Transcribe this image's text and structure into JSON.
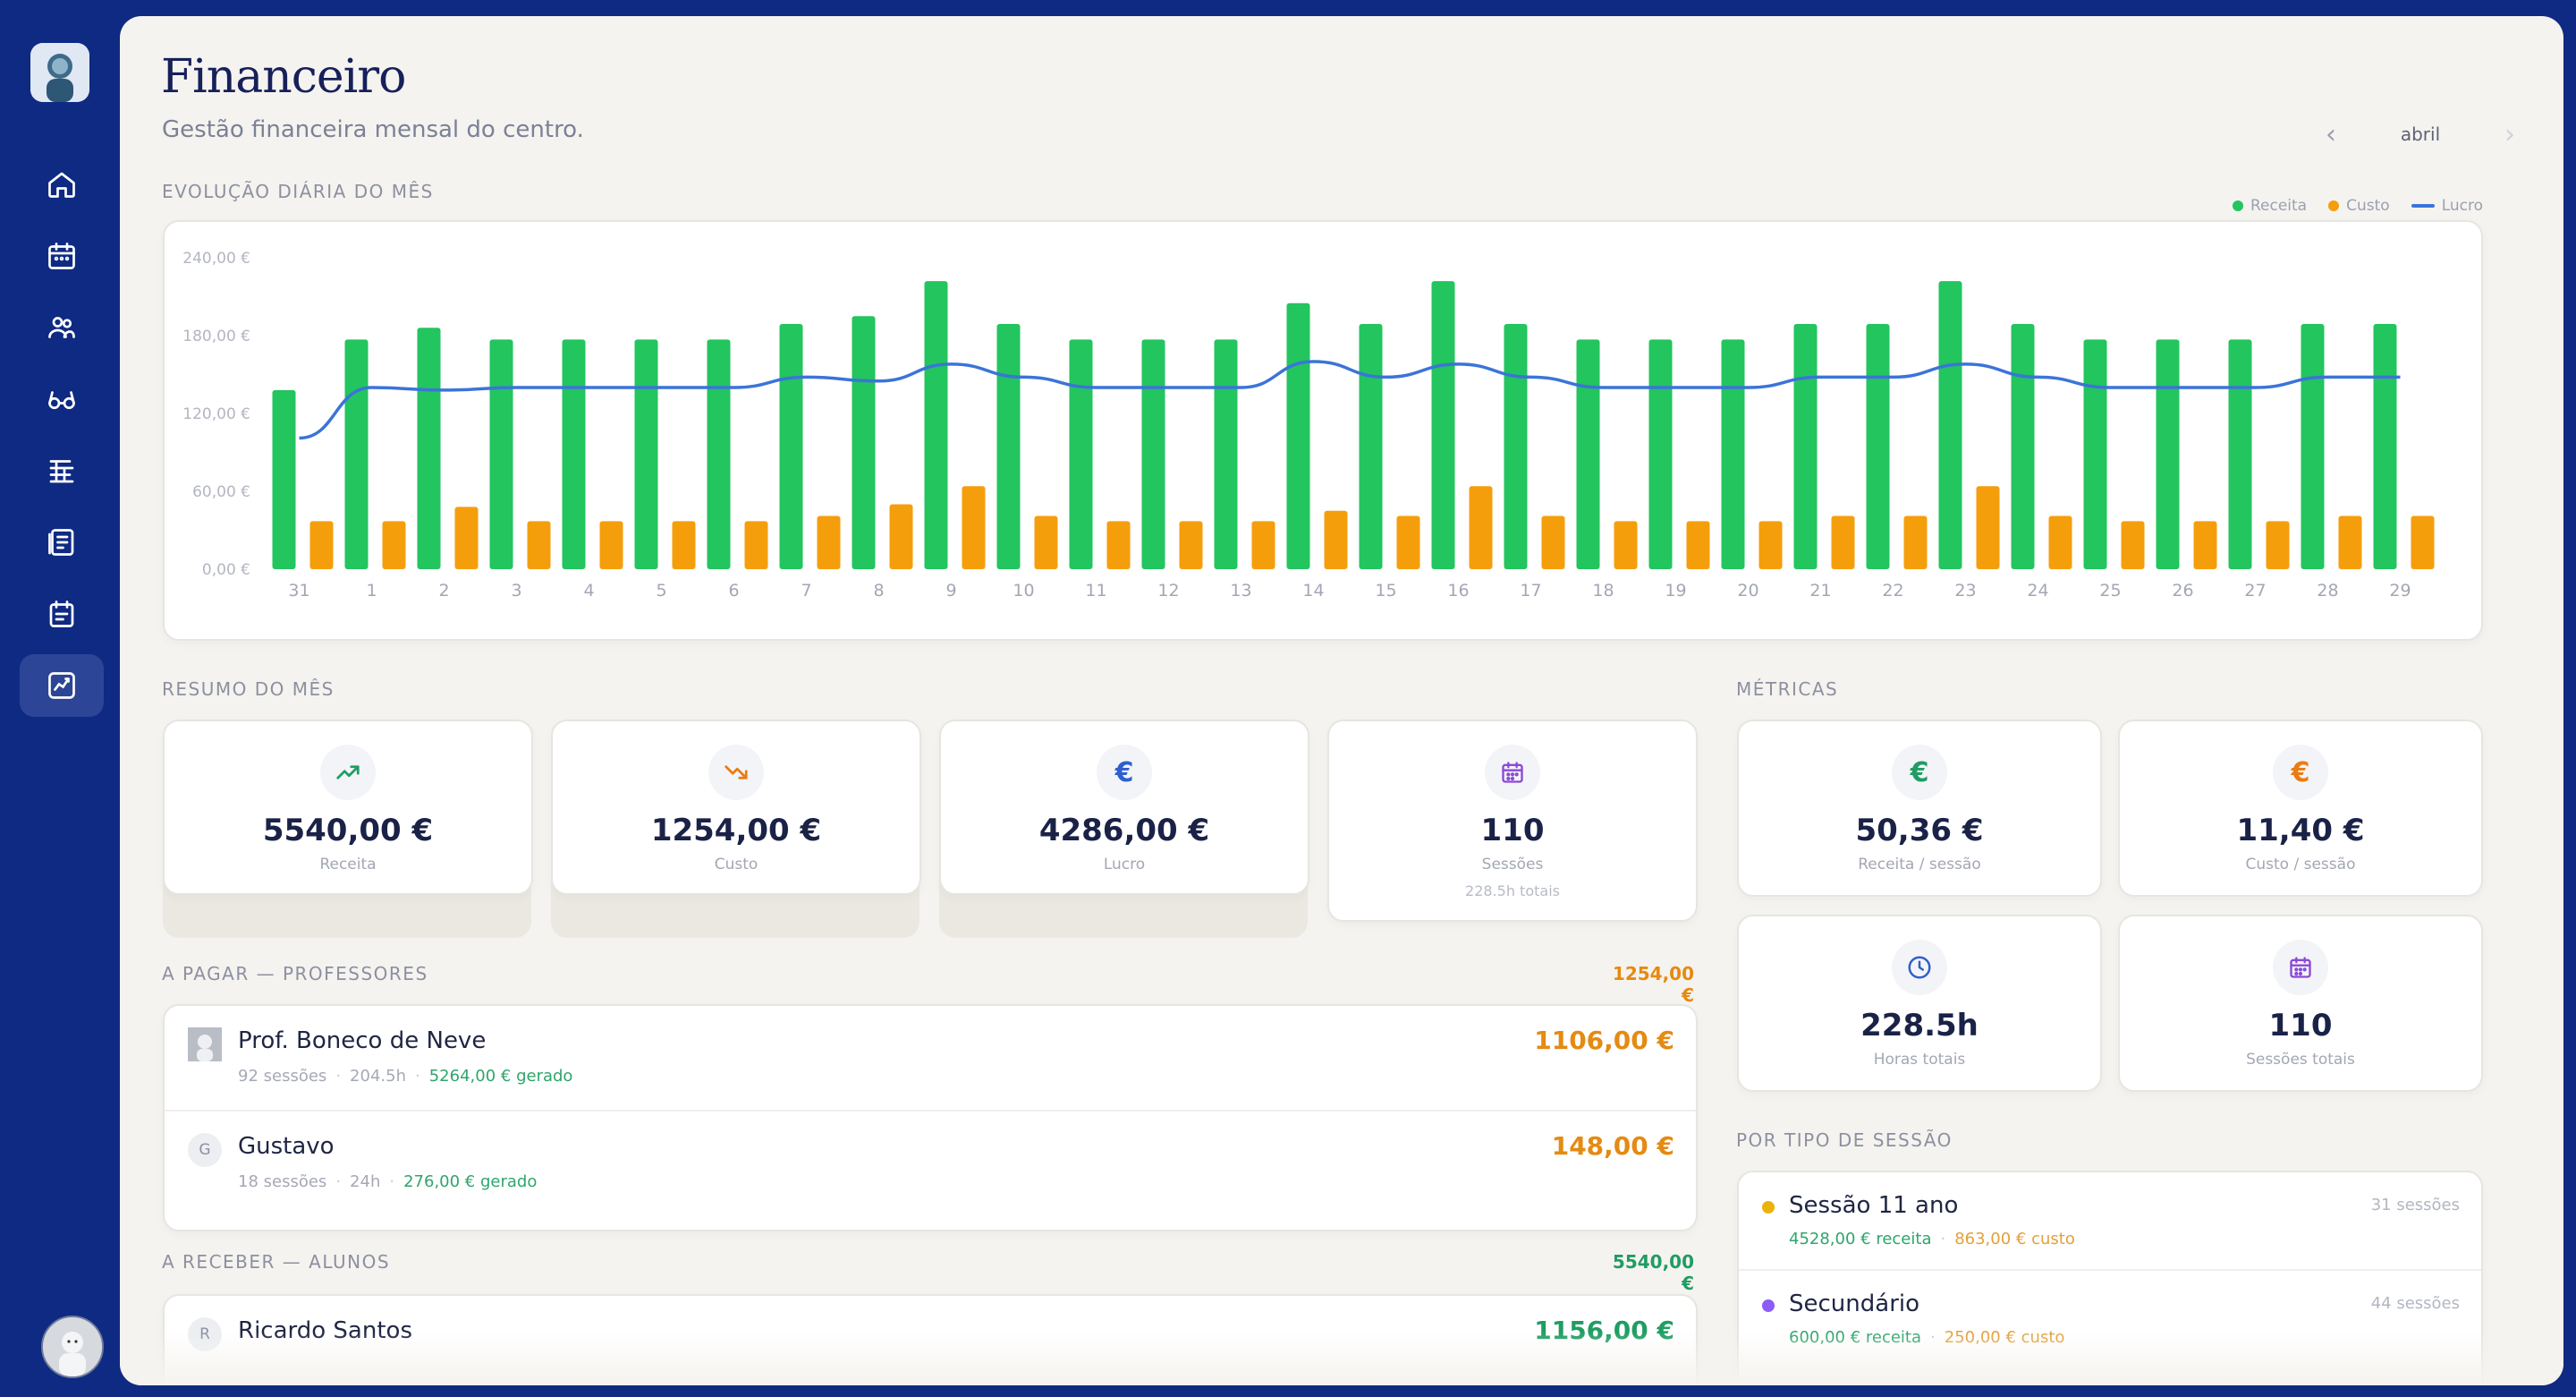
{
  "header": {
    "title": "Financeiro",
    "subtitle": "Gestão financeira mensal do centro.",
    "month": "abril"
  },
  "sidebar": {
    "items": [
      {
        "icon": "home-icon"
      },
      {
        "icon": "calendar-icon"
      },
      {
        "icon": "people-icon"
      },
      {
        "icon": "glasses-icon"
      },
      {
        "icon": "books-icon"
      },
      {
        "icon": "checklist-icon"
      },
      {
        "icon": "schedule-icon"
      },
      {
        "icon": "chart-icon",
        "active": true
      }
    ]
  },
  "evolution": {
    "label": "EVOLUÇÃO DIÁRIA DO MÊS",
    "legend": {
      "receita": "Receita",
      "custo": "Custo",
      "lucro": "Lucro"
    }
  },
  "chart_data": {
    "type": "bar",
    "categories": [
      "31",
      "1",
      "2",
      "3",
      "4",
      "5",
      "6",
      "7",
      "8",
      "9",
      "10",
      "11",
      "12",
      "13",
      "14",
      "15",
      "16",
      "17",
      "18",
      "19",
      "20",
      "21",
      "22",
      "23",
      "24",
      "25",
      "26",
      "27",
      "28",
      "29"
    ],
    "y_tick_labels": [
      "0,00 €",
      "60,00 €",
      "120,00 €",
      "180,00 €",
      "240,00 €"
    ],
    "ylim": [
      0,
      240
    ],
    "series": [
      {
        "name": "Receita",
        "color": "#22c55e",
        "values": [
          138,
          177,
          186,
          177,
          177,
          177,
          177,
          189,
          195,
          222,
          189,
          177,
          177,
          177,
          205,
          189,
          222,
          189,
          177,
          177,
          177,
          189,
          189,
          222,
          189,
          177,
          177,
          177,
          189,
          189
        ]
      },
      {
        "name": "Custo",
        "color": "#f59e0b",
        "values": [
          37,
          37,
          48,
          37,
          37,
          37,
          37,
          41,
          50,
          64,
          41,
          37,
          37,
          37,
          45,
          41,
          64,
          41,
          37,
          37,
          37,
          41,
          41,
          64,
          41,
          37,
          37,
          37,
          41,
          41
        ]
      },
      {
        "name": "Lucro",
        "color": "#3b74d8",
        "type": "line",
        "values": [
          101,
          140,
          138,
          140,
          140,
          140,
          140,
          148,
          145,
          158,
          148,
          140,
          140,
          140,
          160,
          148,
          158,
          148,
          140,
          140,
          140,
          148,
          148,
          158,
          148,
          140,
          140,
          140,
          148,
          148
        ]
      }
    ]
  },
  "summary": {
    "label": "RESUMO DO MÊS",
    "cards": [
      {
        "value": "5540,00 €",
        "label": "Receita",
        "icon": "trend-up-icon"
      },
      {
        "value": "1254,00 €",
        "label": "Custo",
        "icon": "trend-down-icon"
      },
      {
        "value": "4286,00 €",
        "label": "Lucro",
        "icon": "euro-icon"
      },
      {
        "value": "110",
        "label": "Sessões",
        "sub": "228.5h totais",
        "icon": "calendar-icon"
      }
    ]
  },
  "metrics": {
    "label": "MÉTRICAS",
    "cards": [
      {
        "value": "50,36 €",
        "label": "Receita / sessão",
        "icon": "euro-icon"
      },
      {
        "value": "11,40 €",
        "label": "Custo / sessão",
        "icon": "euro-icon"
      },
      {
        "value": "228.5h",
        "label": "Horas totais",
        "icon": "clock-icon"
      },
      {
        "value": "110",
        "label": "Sessões totais",
        "icon": "calendar-icon"
      }
    ]
  },
  "payables": {
    "label": "A PAGAR — PROFESSORES",
    "total": "1254,00 €",
    "rows": [
      {
        "name": "Prof. Boneco de Neve",
        "sessions": "92 sessões",
        "hours": "204.5h",
        "generated": "5264,00 € gerado",
        "amount": "1106,00 €",
        "avatar": ""
      },
      {
        "name": "Gustavo",
        "sessions": "18 sessões",
        "hours": "24h",
        "generated": "276,00 € gerado",
        "amount": "148,00 €",
        "avatar": "G"
      }
    ]
  },
  "receivables": {
    "label": "A RECEBER — ALUNOS",
    "total": "5540,00 €",
    "rows": [
      {
        "name": "Ricardo Santos",
        "amount": "1156,00 €",
        "avatar": "R"
      }
    ]
  },
  "session_types": {
    "label": "POR TIPO DE SESSÃO",
    "rows": [
      {
        "name": "Sessão 11 ano",
        "receita": "4528,00 € receita",
        "custo": "863,00 € custo",
        "count": "31 sessões",
        "color": "#eab308"
      },
      {
        "name": "Secundário",
        "receita": "600,00 € receita",
        "custo": "250,00 € custo",
        "count": "44 sessões",
        "color": "#8b5cf6"
      }
    ]
  }
}
